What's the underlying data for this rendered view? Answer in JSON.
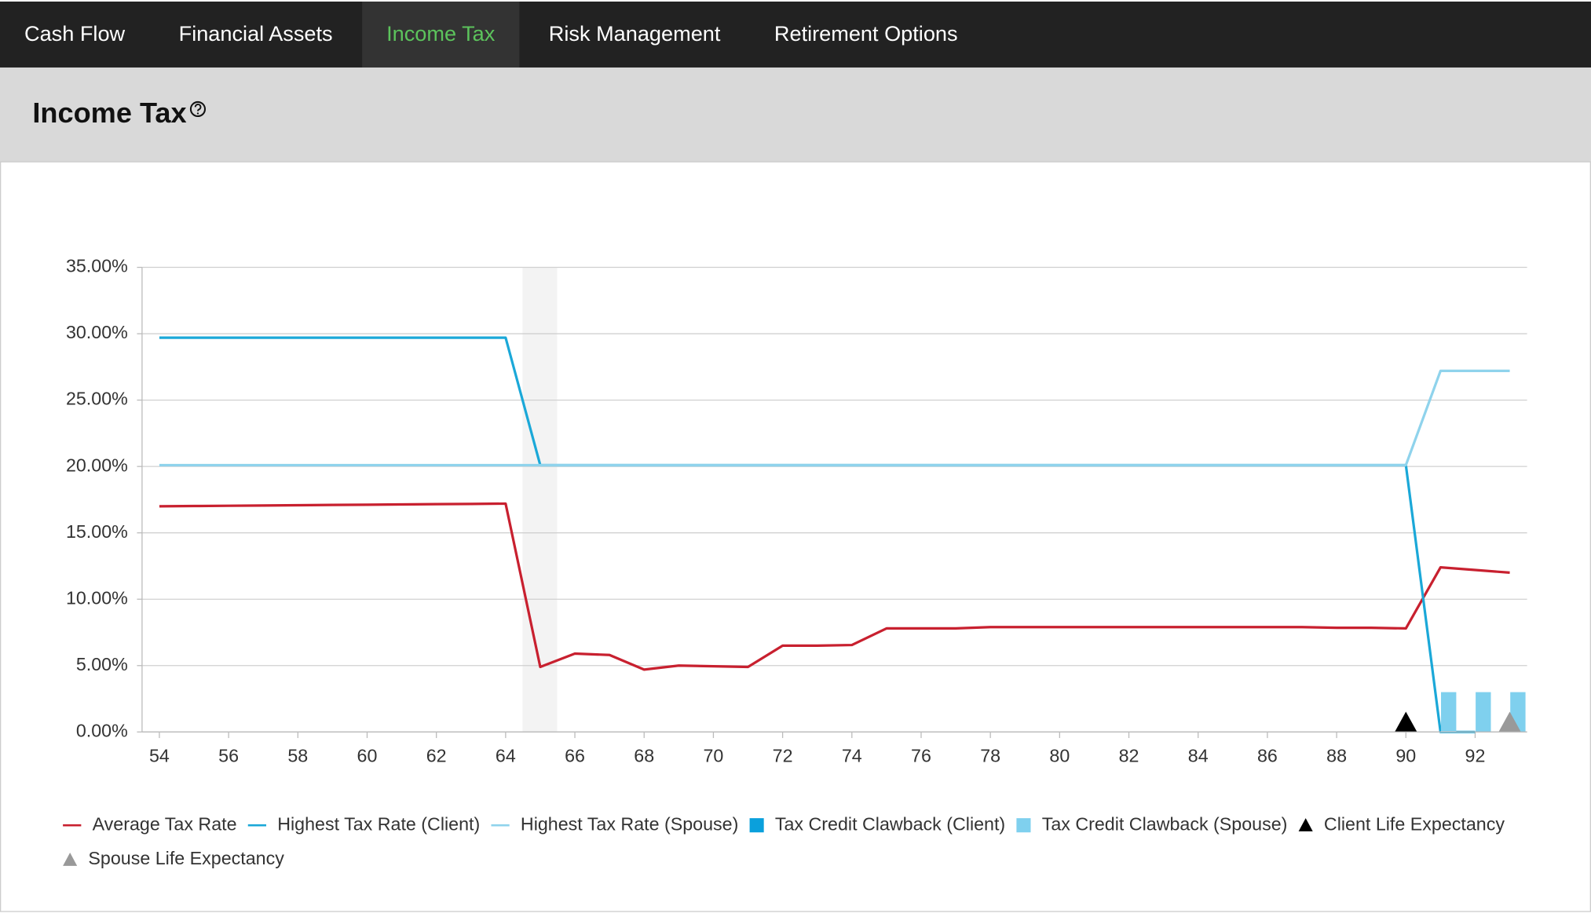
{
  "nav": {
    "tabs": [
      "Cash Flow",
      "Financial Assets",
      "Income Tax",
      "Risk Management",
      "Retirement Options"
    ],
    "active": 2
  },
  "header": {
    "title": "Income Tax"
  },
  "chart_data": {
    "type": "line",
    "x": [
      54,
      55,
      56,
      57,
      58,
      59,
      60,
      61,
      62,
      63,
      64,
      65,
      66,
      67,
      68,
      69,
      70,
      71,
      72,
      73,
      74,
      75,
      76,
      77,
      78,
      79,
      80,
      81,
      82,
      83,
      84,
      85,
      86,
      87,
      88,
      89,
      90,
      91,
      92,
      93
    ],
    "xlim": [
      53.5,
      93.5
    ],
    "xticks": [
      54,
      56,
      58,
      60,
      62,
      64,
      66,
      68,
      70,
      72,
      74,
      76,
      78,
      80,
      82,
      84,
      86,
      88,
      90,
      92
    ],
    "ylim": [
      0,
      35
    ],
    "yticks": [
      {
        "value": 0,
        "label": "0.00%"
      },
      {
        "value": 5,
        "label": "5.00%"
      },
      {
        "value": 10,
        "label": "10.00%"
      },
      {
        "value": 15,
        "label": "15.00%"
      },
      {
        "value": 20,
        "label": "20.00%"
      },
      {
        "value": 25,
        "label": "25.00%"
      },
      {
        "value": 30,
        "label": "30.00%"
      },
      {
        "value": 35,
        "label": "35.00%"
      }
    ],
    "grid": true,
    "series": [
      {
        "name": "Average Tax Rate",
        "type": "line",
        "color": "#c8202f",
        "values": [
          17.0,
          17.02,
          17.04,
          17.06,
          17.08,
          17.1,
          17.12,
          17.14,
          17.16,
          17.18,
          17.2,
          4.9,
          5.9,
          5.8,
          4.7,
          5.0,
          4.95,
          4.9,
          6.5,
          6.5,
          6.55,
          7.8,
          7.8,
          7.8,
          7.9,
          7.9,
          7.9,
          7.9,
          7.9,
          7.9,
          7.9,
          7.9,
          7.9,
          7.9,
          7.85,
          7.85,
          7.8,
          12.4,
          12.2,
          12.0
        ]
      },
      {
        "name": "Highest Tax Rate (Client)",
        "type": "line",
        "color": "#1ba8d8",
        "values": [
          29.7,
          29.7,
          29.7,
          29.7,
          29.7,
          29.7,
          29.7,
          29.7,
          29.7,
          29.7,
          29.7,
          20.1,
          20.1,
          20.1,
          20.1,
          20.1,
          20.1,
          20.1,
          20.1,
          20.1,
          20.1,
          20.1,
          20.1,
          20.1,
          20.1,
          20.1,
          20.1,
          20.1,
          20.1,
          20.1,
          20.1,
          20.1,
          20.1,
          20.1,
          20.1,
          20.1,
          20.1,
          0,
          0,
          null
        ]
      },
      {
        "name": "Highest Tax Rate (Spouse)",
        "type": "line",
        "color": "#8fd3ec",
        "values": [
          20.1,
          20.1,
          20.1,
          20.1,
          20.1,
          20.1,
          20.1,
          20.1,
          20.1,
          20.1,
          20.1,
          20.1,
          20.1,
          20.1,
          20.1,
          20.1,
          20.1,
          20.1,
          20.1,
          20.1,
          20.1,
          20.1,
          20.1,
          20.1,
          20.1,
          20.1,
          20.1,
          20.1,
          20.1,
          20.1,
          20.1,
          20.1,
          20.1,
          20.1,
          20.1,
          20.1,
          20.1,
          27.2,
          27.2,
          27.2
        ]
      },
      {
        "name": "Tax Credit Clawback (Client)",
        "type": "bar",
        "color": "#0aa0dc",
        "x": [
          91,
          92,
          93
        ],
        "values": [
          0,
          0,
          0
        ]
      },
      {
        "name": "Tax Credit Clawback (Spouse)",
        "type": "bar",
        "color": "#7fd0ee",
        "x": [
          91,
          92,
          93
        ],
        "values": [
          3,
          3,
          3
        ]
      },
      {
        "name": "Client Life Expectancy",
        "type": "marker",
        "color": "#000000",
        "x": [
          90
        ],
        "values": [
          0
        ]
      },
      {
        "name": "Spouse Life Expectancy",
        "type": "marker",
        "color": "#999999",
        "x": [
          93
        ],
        "values": [
          0
        ]
      }
    ]
  }
}
